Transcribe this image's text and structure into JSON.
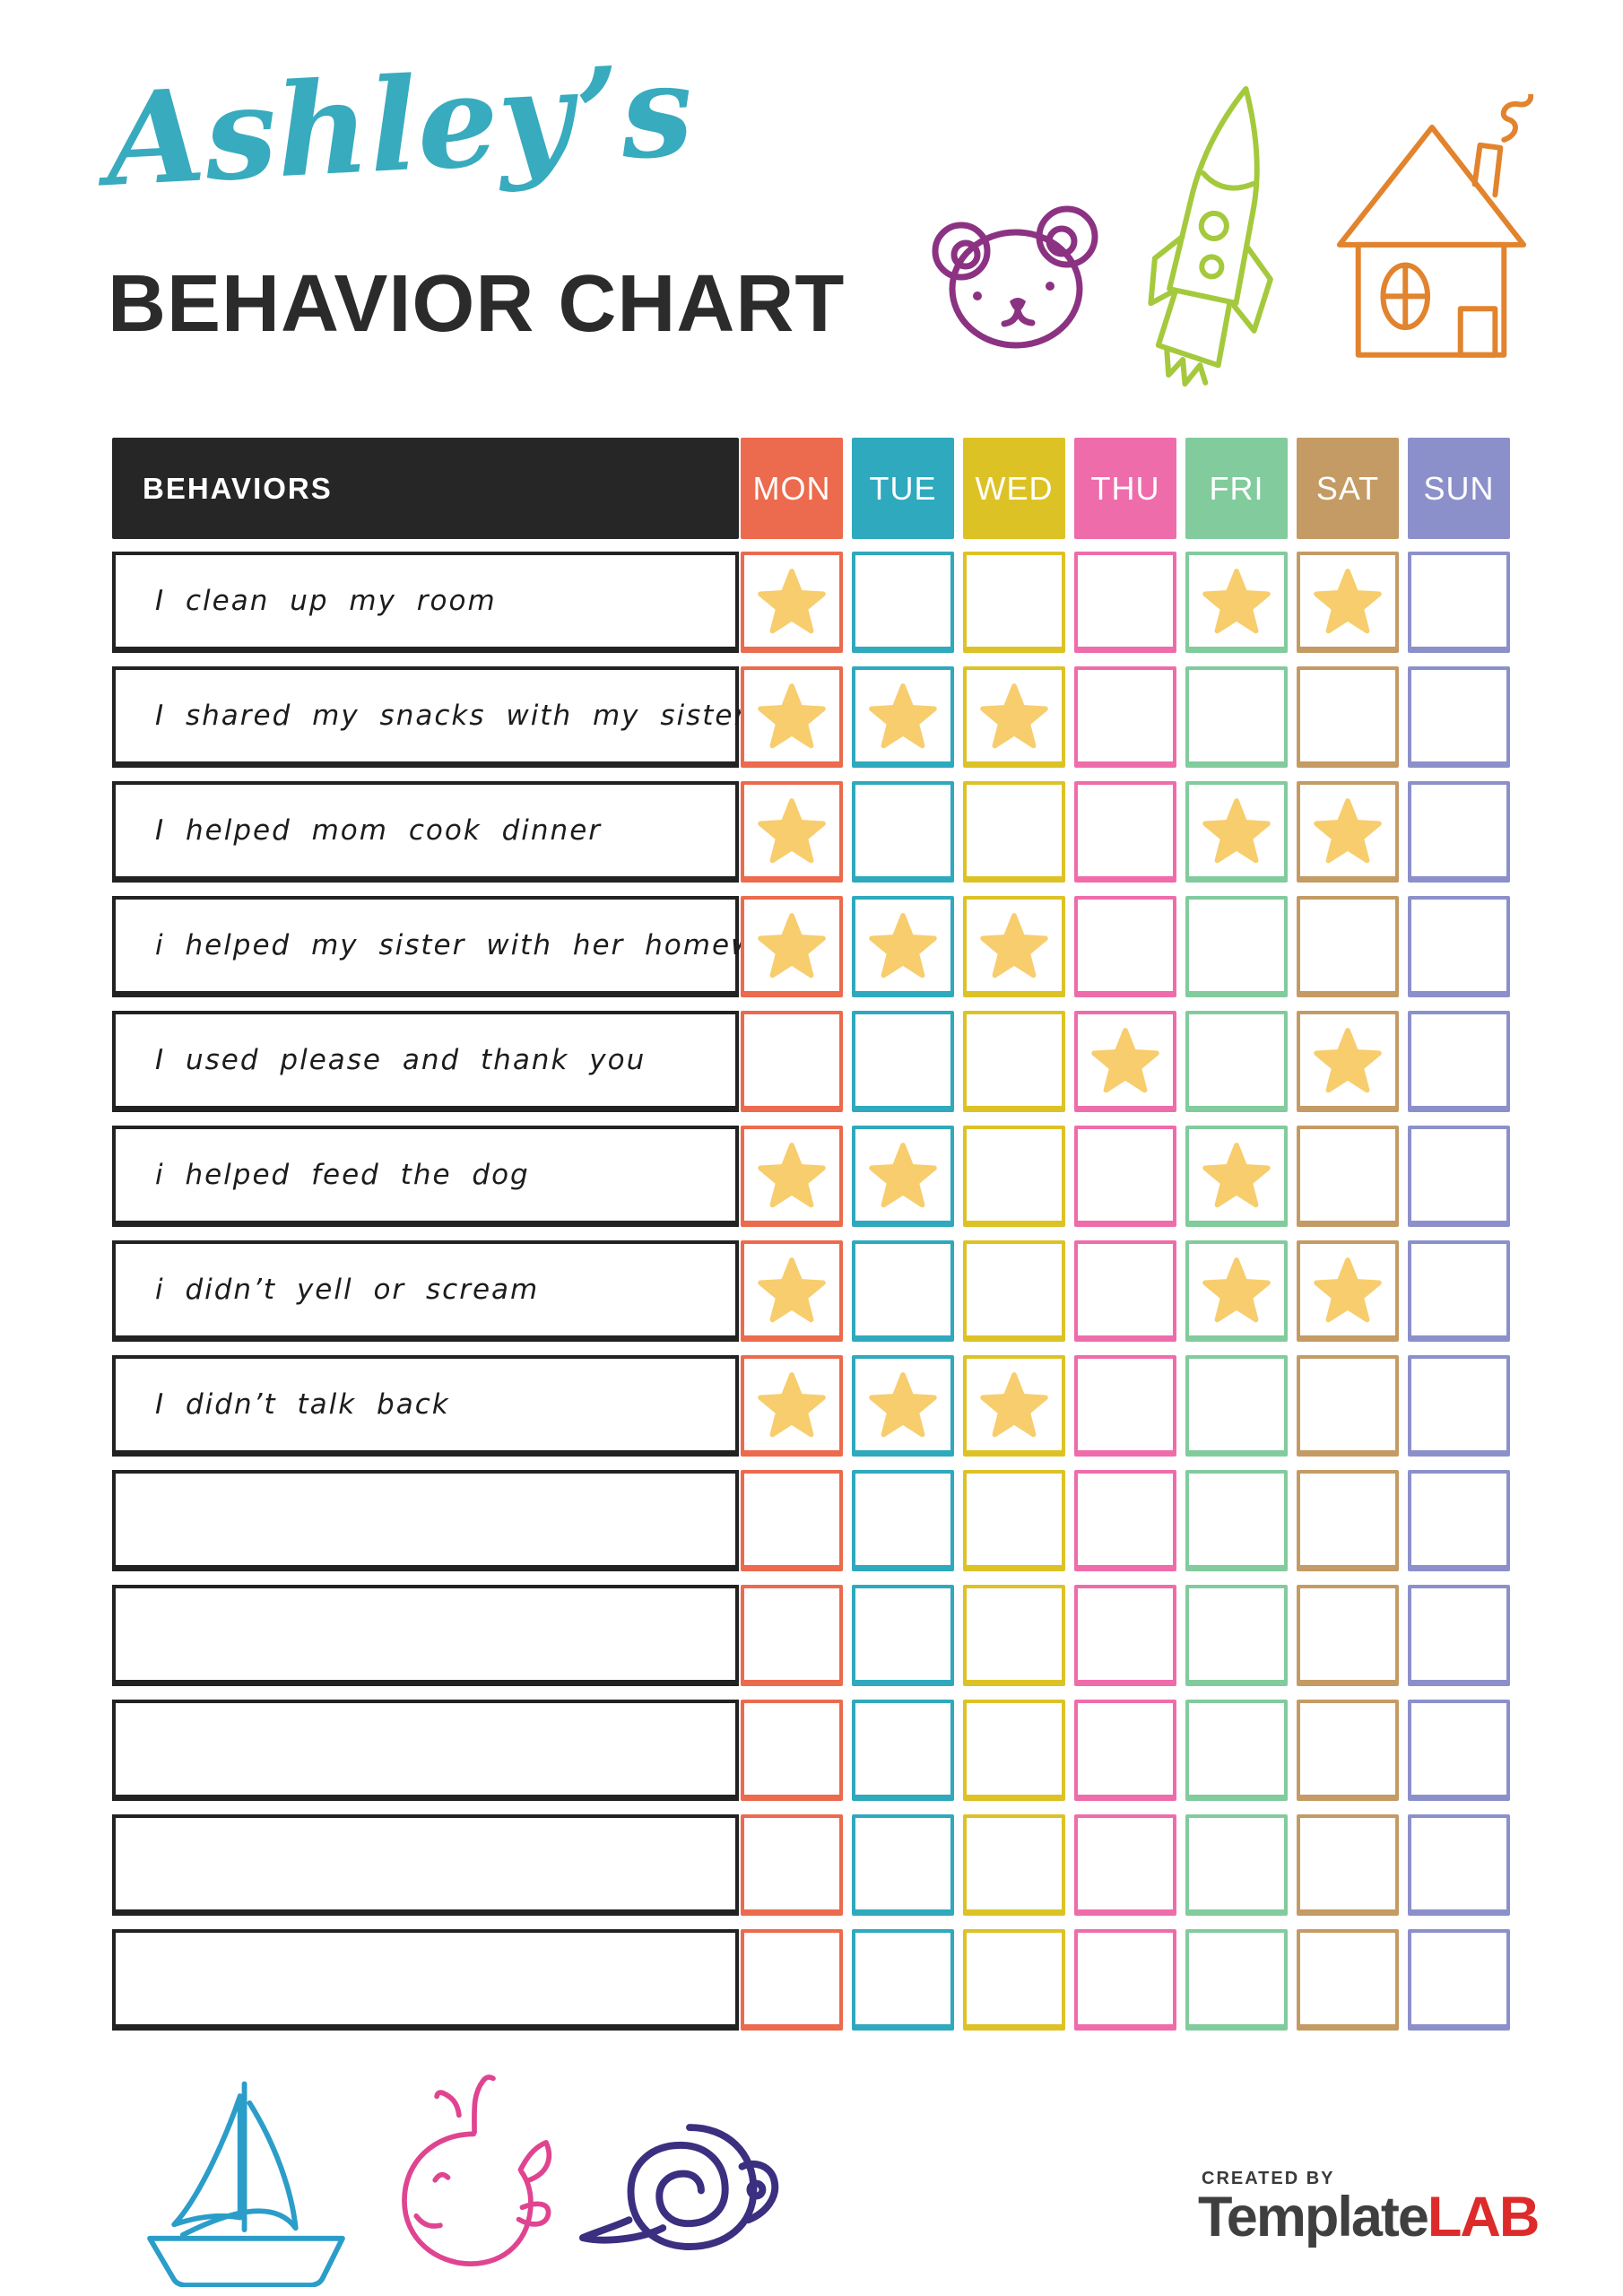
{
  "page": {
    "title_script": "Ashley’s",
    "title_script_color": "#38abbe",
    "title_main": "BEHAVIOR CHART",
    "title_main_color": "#2b2b2b"
  },
  "table": {
    "behaviors_label": "BEHAVIORS",
    "header_bg": "#262626",
    "star_color": "#f7cd6d",
    "days": [
      {
        "label": "MON",
        "color": "#ec6a4d"
      },
      {
        "label": "TUE",
        "color": "#2fa9bd"
      },
      {
        "label": "WED",
        "color": "#ddc226"
      },
      {
        "label": "THU",
        "color": "#ef6cab"
      },
      {
        "label": "FRI",
        "color": "#82cb9d"
      },
      {
        "label": "SAT",
        "color": "#c49b64"
      },
      {
        "label": "SUN",
        "color": "#8c90ca"
      }
    ],
    "rows": [
      {
        "label": "I clean up my room",
        "stars": [
          "MON",
          "FRI",
          "SAT"
        ]
      },
      {
        "label": "I shared my snacks with my sister",
        "stars": [
          "MON",
          "TUE",
          "WED"
        ]
      },
      {
        "label": "I helped mom cook dinner",
        "stars": [
          "MON",
          "FRI",
          "SAT"
        ]
      },
      {
        "label": "i helped my sister with her homework",
        "stars": [
          "MON",
          "TUE",
          "WED"
        ]
      },
      {
        "label": "I used please and thank you",
        "stars": [
          "THU",
          "SAT"
        ]
      },
      {
        "label": "i helped feed the dog",
        "stars": [
          "MON",
          "TUE",
          "FRI"
        ]
      },
      {
        "label": "i didn’t yell or scream",
        "stars": [
          "MON",
          "FRI",
          "SAT"
        ]
      },
      {
        "label": "I didn’t talk back",
        "stars": [
          "MON",
          "TUE",
          "WED"
        ]
      },
      {
        "label": "",
        "stars": []
      },
      {
        "label": "",
        "stars": []
      },
      {
        "label": "",
        "stars": []
      },
      {
        "label": "",
        "stars": []
      },
      {
        "label": "",
        "stars": []
      }
    ]
  },
  "doodles": {
    "top": [
      {
        "name": "bear-icon",
        "color": "#8c3282"
      },
      {
        "name": "rocket-icon",
        "color": "#a5c93d"
      },
      {
        "name": "house-icon",
        "color": "#e2832e"
      }
    ],
    "bottom": [
      {
        "name": "sailboat-icon",
        "color": "#2b9dc9"
      },
      {
        "name": "whale-icon",
        "color": "#e04490"
      },
      {
        "name": "snail-icon",
        "color": "#3b2f80"
      }
    ]
  },
  "footer": {
    "created_by": "CREATED BY",
    "brand_primary": "Template",
    "brand_accent": "LAB",
    "brand_primary_color": "#3f3f3f",
    "brand_accent_color": "#dd2a2a"
  }
}
